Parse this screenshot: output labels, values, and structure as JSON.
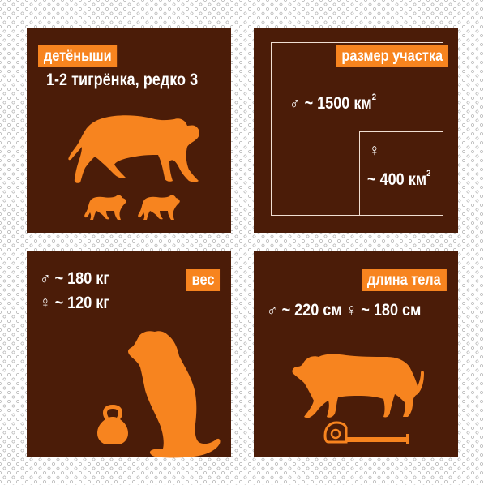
{
  "panels": {
    "cubs": {
      "label": "детёныши",
      "text": "1-2 тигрёнка, редко 3"
    },
    "territory": {
      "label": "размер участка",
      "male_symbol": "♂",
      "male_text": "~ 1500 км",
      "female_symbol": "♀",
      "female_text": "~ 400 км",
      "unit_power": "2"
    },
    "weight": {
      "label": "вес",
      "male_symbol": "♂",
      "male_text": "~ 180 кг",
      "female_symbol": "♀",
      "female_text": "~ 120 кг"
    },
    "length": {
      "label": "длина тела",
      "male_symbol": "♂",
      "male_text": "~ 220 см",
      "female_symbol": "♀",
      "female_text": "~ 180 см"
    }
  },
  "icons": {
    "cubs": [
      "adult-tiger-icon",
      "cub-icon",
      "cub-icon"
    ],
    "weight": [
      "kettlebell-icon",
      "sitting-tiger-icon"
    ],
    "length": [
      "walking-tiger-icon",
      "measuring-tape-icon"
    ]
  },
  "colors": {
    "panel": "#4b1c08",
    "accent": "#f7841f",
    "text": "#ffffff",
    "background_dots": "#b9b9b9"
  }
}
